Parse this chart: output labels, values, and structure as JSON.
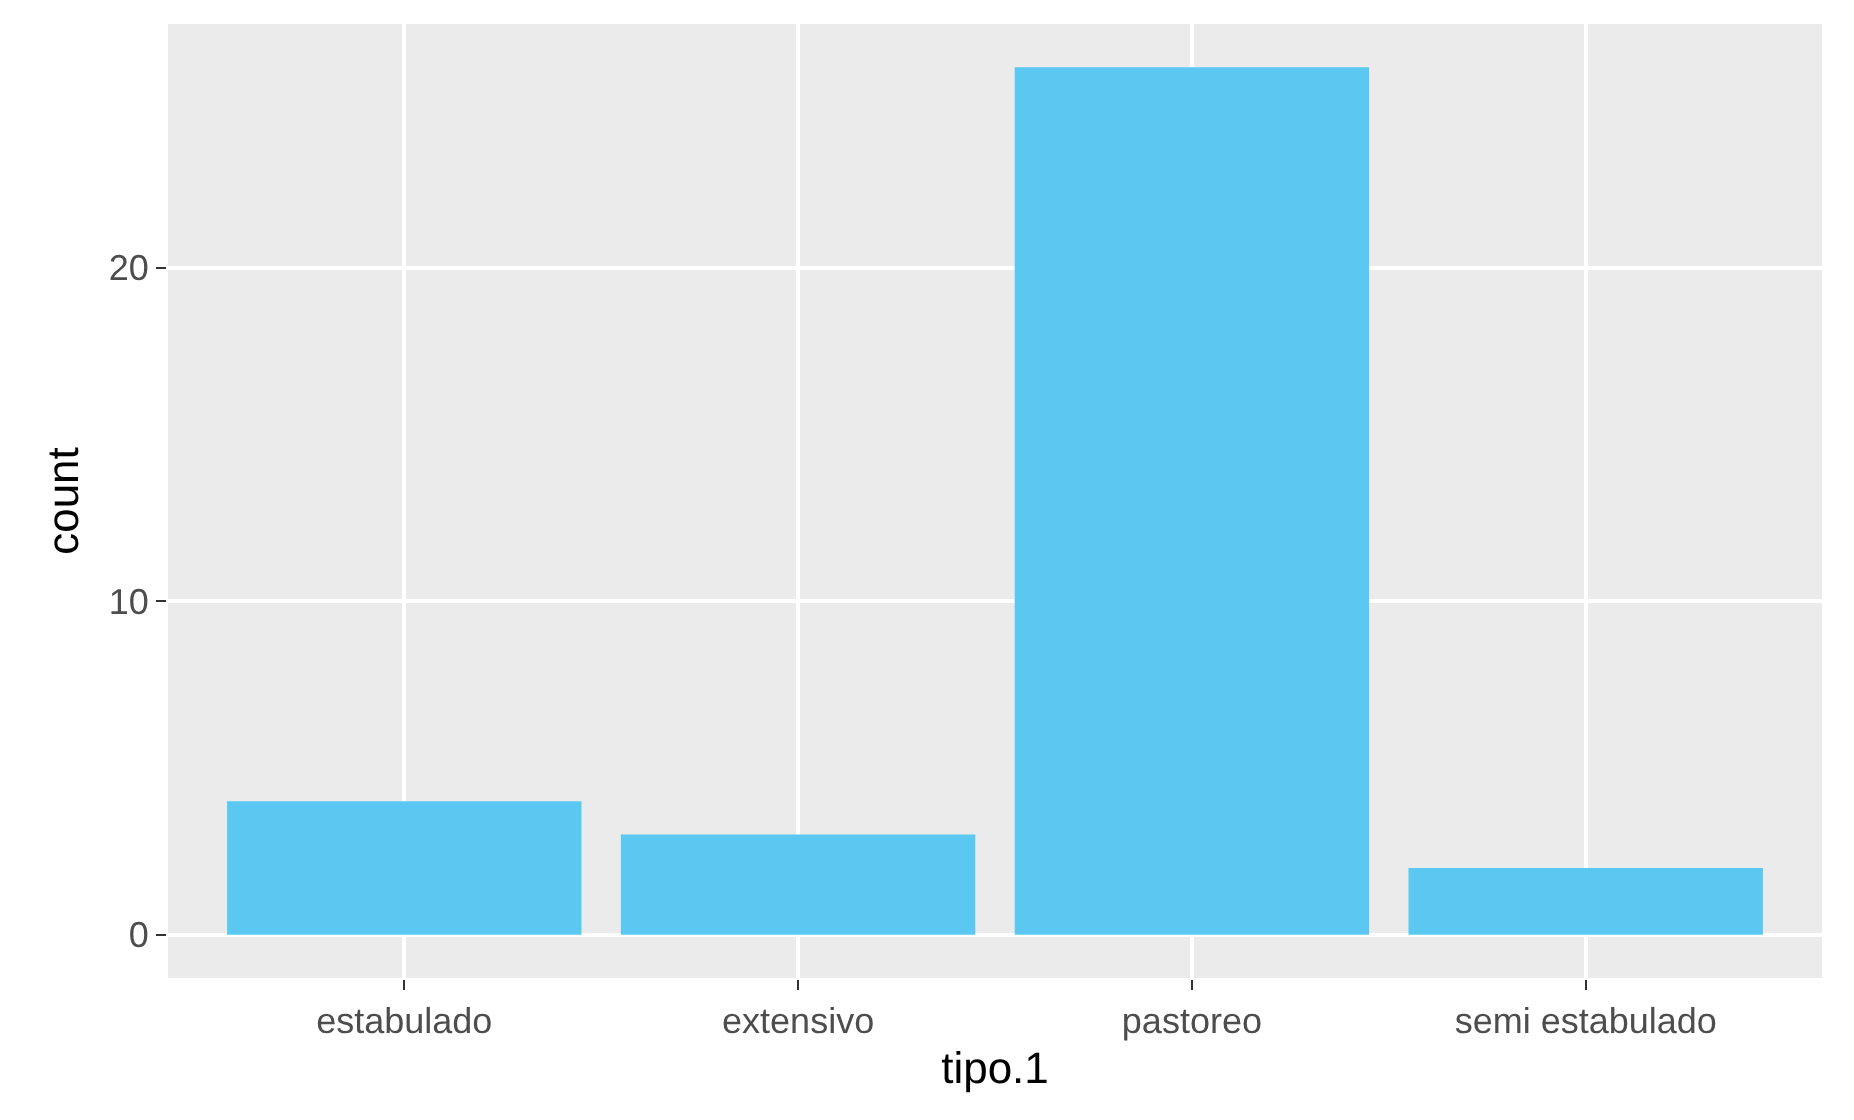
{
  "chart_data": {
    "type": "bar",
    "xlabel": "tipo.1",
    "ylabel": "count",
    "categories": [
      "estabulado",
      "extensivo",
      "pastoreo",
      "semi estabulado"
    ],
    "values": [
      4,
      3,
      26,
      2
    ],
    "color": "#5bc8f2",
    "ylim": [
      -1.3,
      27.3
    ],
    "yticks": [
      0,
      10,
      20
    ],
    "grid": true
  }
}
